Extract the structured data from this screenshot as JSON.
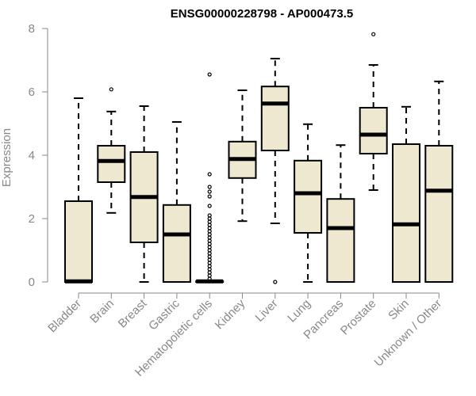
{
  "chart_data": {
    "type": "boxplot",
    "title": "ENSG00000228798 - AP000473.5",
    "xlabel": "",
    "ylabel": "Expression",
    "ylim": [
      0,
      8
    ],
    "yticks": [
      0,
      2,
      4,
      6,
      8
    ],
    "categories": [
      "Bladder",
      "Brain",
      "Breast",
      "Gastric",
      "Hematopoietic cells",
      "Kidney",
      "Liver",
      "Lung",
      "Pancreas",
      "Prostate",
      "Skin",
      "Unknown / Other"
    ],
    "boxes": [
      {
        "name": "Bladder",
        "min": 0,
        "q1": 0,
        "median": 0.02,
        "q3": 2.55,
        "max": 5.8,
        "outliers": []
      },
      {
        "name": "Brain",
        "min": 2.18,
        "q1": 3.15,
        "median": 3.82,
        "q3": 4.3,
        "max": 5.38,
        "outliers": [
          6.08
        ]
      },
      {
        "name": "Breast",
        "min": 0,
        "q1": 1.25,
        "median": 2.68,
        "q3": 4.1,
        "max": 5.55,
        "outliers": []
      },
      {
        "name": "Gastric",
        "min": 0,
        "q1": 0,
        "median": 1.5,
        "q3": 2.43,
        "max": 5.05,
        "outliers": []
      },
      {
        "name": "Hematopoietic cells",
        "min": 0,
        "q1": 0,
        "median": 0.02,
        "q3": 0.02,
        "max": 0.02,
        "outliers": [
          0.1,
          0.2,
          0.3,
          0.4,
          0.5,
          0.6,
          0.7,
          0.8,
          0.9,
          1.0,
          1.1,
          1.2,
          1.3,
          1.4,
          1.5,
          1.6,
          1.7,
          1.8,
          1.9,
          2.0,
          2.1,
          2.4,
          2.7,
          2.85,
          3.0,
          3.4,
          6.55
        ]
      },
      {
        "name": "Kidney",
        "min": 1.92,
        "q1": 3.28,
        "median": 3.88,
        "q3": 4.43,
        "max": 6.05,
        "outliers": []
      },
      {
        "name": "Liver",
        "min": 1.85,
        "q1": 4.15,
        "median": 5.63,
        "q3": 6.17,
        "max": 7.05,
        "outliers": [
          0
        ]
      },
      {
        "name": "Lung",
        "min": 0,
        "q1": 1.55,
        "median": 2.8,
        "q3": 3.83,
        "max": 4.98,
        "outliers": []
      },
      {
        "name": "Pancreas",
        "min": 0,
        "q1": 0,
        "median": 1.7,
        "q3": 2.62,
        "max": 4.32,
        "outliers": []
      },
      {
        "name": "Prostate",
        "min": 2.9,
        "q1": 4.05,
        "median": 4.65,
        "q3": 5.5,
        "max": 6.85,
        "outliers": [
          7.82
        ]
      },
      {
        "name": "Skin",
        "min": 0,
        "q1": 0,
        "median": 1.82,
        "q3": 4.35,
        "max": 5.53,
        "outliers": []
      },
      {
        "name": "Unknown / Other",
        "min": 0,
        "q1": 0,
        "median": 2.88,
        "q3": 4.3,
        "max": 6.33,
        "outliers": []
      }
    ],
    "colors": {
      "box_fill": "#efe8d0",
      "box_stroke": "#000000",
      "axis": "#888888",
      "title": "#000000"
    }
  }
}
